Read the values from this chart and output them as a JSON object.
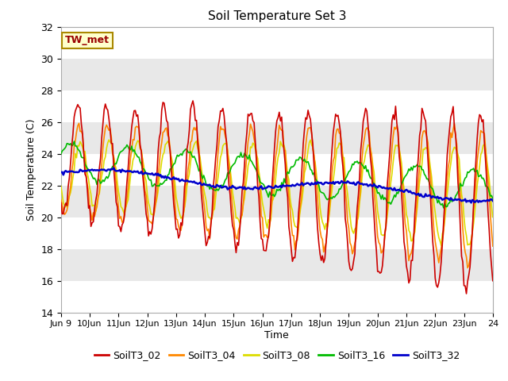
{
  "title": "Soil Temperature Set 3",
  "xlabel": "Time",
  "ylabel": "Soil Temperature (C)",
  "ylim": [
    14,
    32
  ],
  "yticks": [
    14,
    16,
    18,
    20,
    22,
    24,
    26,
    28,
    30,
    32
  ],
  "bg_color": "#ffffff",
  "annotation_text": "TW_met",
  "annotation_bg": "#ffffcc",
  "annotation_border": "#aa8800",
  "annotation_text_color": "#990000",
  "lines": {
    "SoilT3_02": {
      "color": "#cc0000",
      "linewidth": 1.2
    },
    "SoilT3_04": {
      "color": "#ff8800",
      "linewidth": 1.2
    },
    "SoilT3_08": {
      "color": "#dddd00",
      "linewidth": 1.2
    },
    "SoilT3_16": {
      "color": "#00bb00",
      "linewidth": 1.2
    },
    "SoilT3_32": {
      "color": "#0000cc",
      "linewidth": 1.8
    }
  },
  "x_start_day": 9,
  "x_end_day": 24,
  "x_tick_days": [
    9,
    10,
    11,
    12,
    13,
    14,
    15,
    16,
    17,
    18,
    19,
    20,
    21,
    22,
    23,
    24
  ],
  "x_tick_labels": [
    "Jun 9",
    "10Jun",
    "11Jun",
    "12Jun",
    "13Jun",
    "14Jun",
    "15Jun",
    "16Jun",
    "17Jun",
    "18Jun",
    "19Jun",
    "20Jun",
    "21Jun",
    "22Jun",
    "23Jun",
    "24"
  ],
  "band_colors": [
    "#ffffff",
    "#e8e8e8"
  ]
}
